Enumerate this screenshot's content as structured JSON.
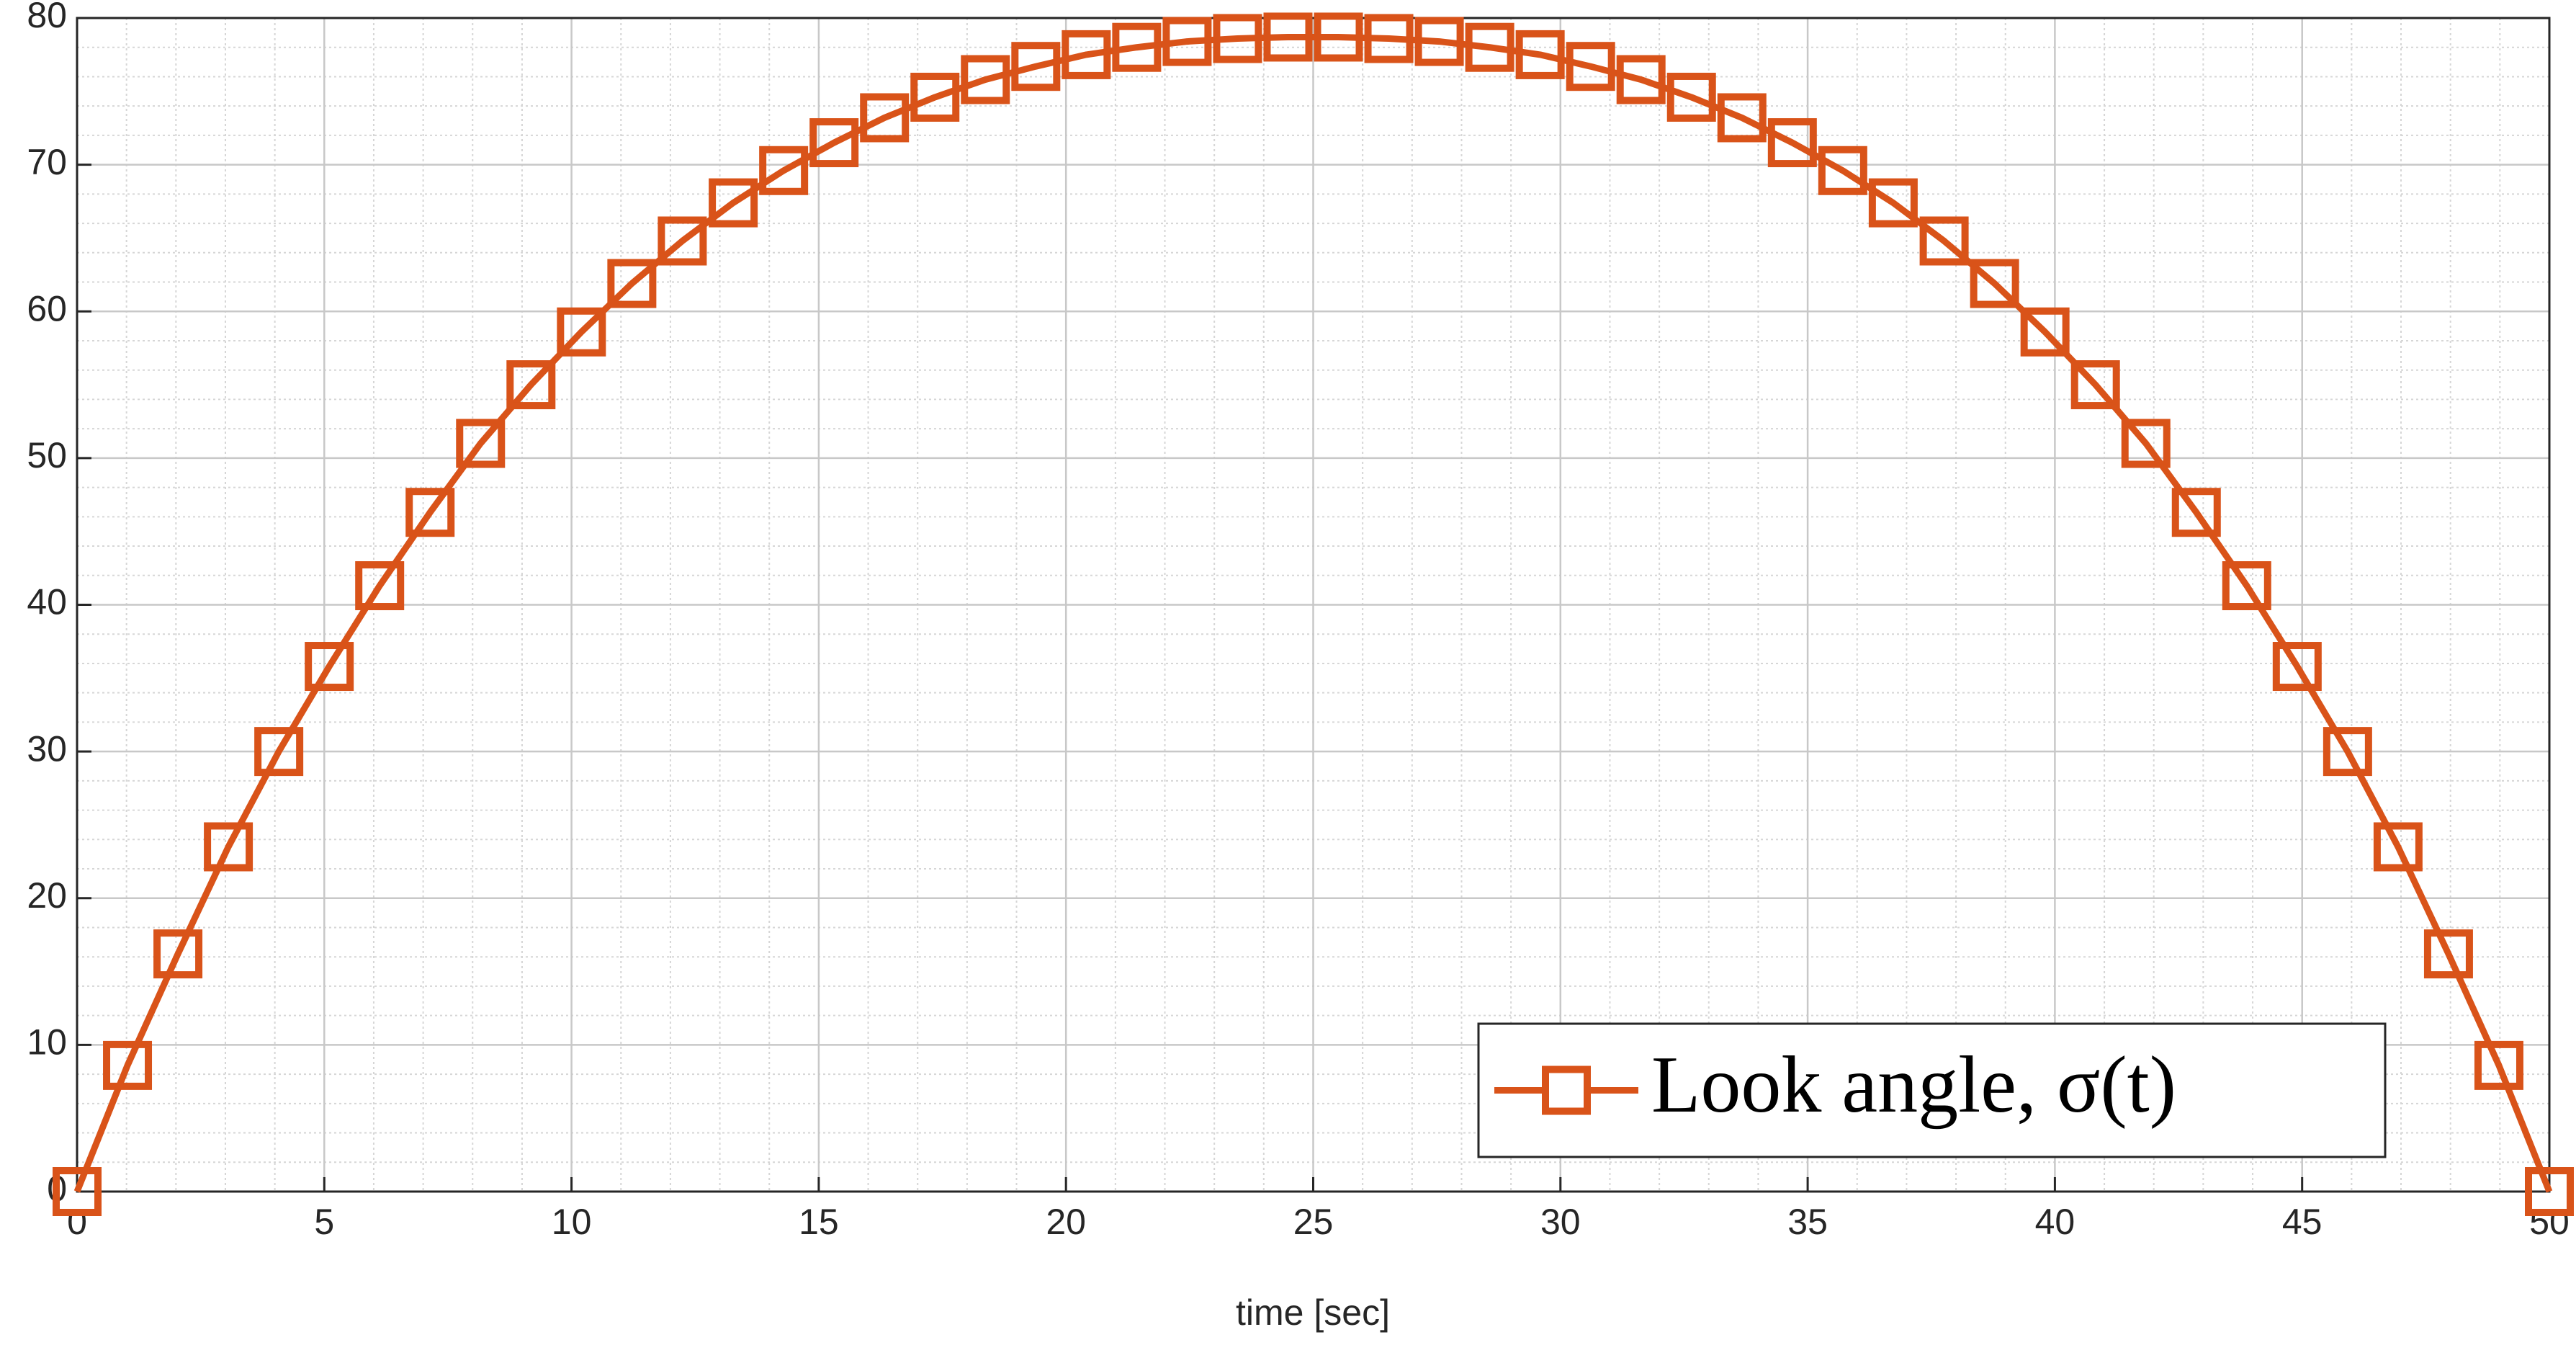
{
  "chart_data": {
    "type": "line",
    "x_label": "time [sec]",
    "x": [
      0,
      1.02,
      2.04,
      3.06,
      4.08,
      5.1,
      6.12,
      7.14,
      8.16,
      9.18,
      10.2,
      11.22,
      12.24,
      13.27,
      14.29,
      15.31,
      16.33,
      17.35,
      18.37,
      19.39,
      20.41,
      21.43,
      22.45,
      23.47,
      24.49,
      25.51,
      26.53,
      27.55,
      28.57,
      29.59,
      30.61,
      31.63,
      32.65,
      33.67,
      34.69,
      35.71,
      36.73,
      37.76,
      38.78,
      39.8,
      40.82,
      41.84,
      42.86,
      43.88,
      44.9,
      45.92,
      46.94,
      47.96,
      48.98,
      50
    ],
    "series": [
      {
        "name": "Look angle, σ(t)",
        "color": "#d95319",
        "marker": "square",
        "values": [
          0,
          8.6,
          16.2,
          23.5,
          30,
          35.8,
          41.3,
          46.3,
          51,
          55,
          58.6,
          61.9,
          64.8,
          67.4,
          69.6,
          71.5,
          73.2,
          74.6,
          75.8,
          76.7,
          77.5,
          78,
          78.4,
          78.6,
          78.7,
          78.7,
          78.6,
          78.4,
          78,
          77.5,
          76.7,
          75.8,
          74.6,
          73.2,
          71.5,
          69.6,
          67.4,
          64.8,
          61.9,
          58.6,
          55,
          51,
          46.3,
          41.3,
          35.8,
          30,
          23.5,
          16.2,
          8.6,
          0
        ]
      }
    ],
    "xlim": [
      0,
      50
    ],
    "xticks": [
      0,
      5,
      10,
      15,
      20,
      25,
      30,
      35,
      40,
      45,
      50
    ],
    "ylim": [
      0,
      80
    ],
    "yticks": [
      0,
      10,
      20,
      30,
      40,
      50,
      60,
      70,
      80
    ],
    "grid": true,
    "minor_grid": true,
    "legend": "southeast"
  }
}
